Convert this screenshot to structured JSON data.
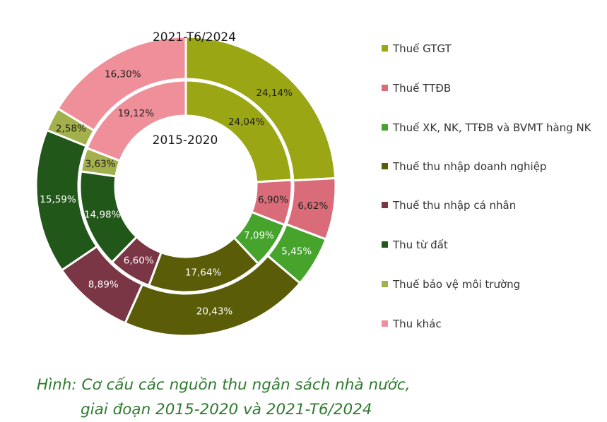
{
  "chart_data": {
    "type": "donut",
    "outer_ring_label": "2021-T6/2024",
    "inner_ring_label": "2015-2020",
    "categories": [
      "Thuế GTGT",
      "Thuế TTĐB",
      "Thuế XK, NK, TTĐB và BVMT hàng NK",
      "Thuế thu nhập doanh nghiệp",
      "Thuế thu nhập cá nhân",
      "Thu từ đất",
      "Thuế bảo vệ môi trường",
      "Thu khác"
    ],
    "colors": [
      "#9aa614",
      "#d96c78",
      "#46a32c",
      "#5a5c08",
      "#7a3644",
      "#22571a",
      "#a4b04c",
      "#ef8f9a"
    ],
    "label_colors": [
      "#222222",
      "#222222",
      "#ffffff",
      "#ffffff",
      "#ffffff",
      "#ffffff",
      "#222222",
      "#222222"
    ],
    "series": [
      {
        "ring": "outer",
        "values": [
          24.14,
          6.62,
          5.45,
          20.43,
          8.89,
          15.59,
          2.58,
          16.3
        ],
        "labels": [
          "24,14%",
          "6,62%",
          "5,45%",
          "20,43%",
          "8,89%",
          "15,59%",
          "2,58%",
          "16,30%"
        ]
      },
      {
        "ring": "inner",
        "values": [
          24.04,
          6.9,
          7.09,
          17.64,
          6.6,
          14.98,
          3.63,
          19.12
        ],
        "labels": [
          "24,04%",
          "6,90%",
          "7,09%",
          "17,64%",
          "6,60%",
          "14,98%",
          "3,63%",
          "19,12%"
        ]
      }
    ]
  },
  "legend": {
    "items": [
      "Thuế GTGT",
      "Thuế TTĐB",
      "Thuế XK, NK, TTĐB và BVMT hàng NK",
      "Thuế thu nhập doanh nghiệp",
      "Thuế thu nhập cá nhân",
      "Thu từ đất",
      "Thuế bảo vệ môi trường",
      "Thu khác"
    ]
  },
  "caption": {
    "line1": "Hình: Cơ cấu các nguồn thu ngân sách nhà nước,",
    "line2": "giai đoạn 2015-2020 và 2021-T6/2024",
    "color": "#2f7a2f"
  }
}
